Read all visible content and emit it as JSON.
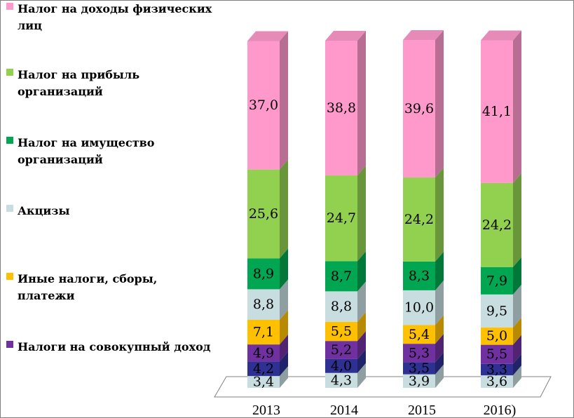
{
  "chart_data": {
    "type": "bar",
    "stacked": true,
    "style": "3d-stacked-column",
    "unit": "",
    "categories": [
      "2013",
      "2014",
      "2015",
      "2016)"
    ],
    "series": [
      {
        "name": "",
        "values": [
          3.4,
          4.3,
          3.9,
          3.6
        ],
        "color": "#c7dde0"
      },
      {
        "name": "Налоги на совокупный доход",
        "values": [
          4.2,
          4.0,
          3.5,
          3.3
        ],
        "color": "#2e3192"
      },
      {
        "name": "",
        "values": [
          4.9,
          5.2,
          5.3,
          5.5
        ],
        "color": "#7030a0"
      },
      {
        "name": "Иные налоги, сборы, платежи",
        "values": [
          7.1,
          5.5,
          5.4,
          5.0
        ],
        "color": "#ffc000"
      },
      {
        "name": "Акцизы",
        "values": [
          8.8,
          8.8,
          10.0,
          9.5
        ],
        "color": "#c7dde0"
      },
      {
        "name": "Налог на имущество организаций",
        "values": [
          8.9,
          8.7,
          8.3,
          7.9
        ],
        "color": "#00a651"
      },
      {
        "name": "Налог на прибыль организаций",
        "values": [
          25.6,
          24.7,
          24.2,
          24.2
        ],
        "color": "#92d050"
      },
      {
        "name": "Налог на доходы физических лиц",
        "values": [
          37.0,
          38.8,
          39.6,
          41.1
        ],
        "color": "#ff99cc"
      }
    ],
    "value_labels": [
      [
        "3,4",
        "4,2",
        "4,9",
        "7,1",
        "8,8",
        "8,9",
        "25,6",
        "37,0"
      ],
      [
        "4,3",
        "4,0",
        "5,2",
        "5,5",
        "8,8",
        "8,7",
        "24,7",
        "38,8"
      ],
      [
        "3,9",
        "3,5",
        "5,3",
        "5,4",
        "10,0",
        "8,3",
        "24,2",
        "39,6"
      ],
      [
        "3,6",
        "3,3",
        "5,5",
        "5,0",
        "9,5",
        "7,9",
        "24,2",
        "41,1"
      ]
    ],
    "legend": [
      {
        "label": "Налог на доходы физических лиц",
        "color": "#ff99cc"
      },
      {
        "label": "Налог на прибыль организаций",
        "color": "#92d050"
      },
      {
        "label": "Налог на имущество организаций",
        "color": "#00a651"
      },
      {
        "label": "Акцизы",
        "color": "#c7dde0"
      },
      {
        "label": "Иные налоги, сборы, платежи",
        "color": "#ffc000"
      },
      {
        "label": "Налоги на совокупный доход",
        "color": "#7030a0"
      }
    ],
    "legend_position": "left",
    "grid": false
  }
}
